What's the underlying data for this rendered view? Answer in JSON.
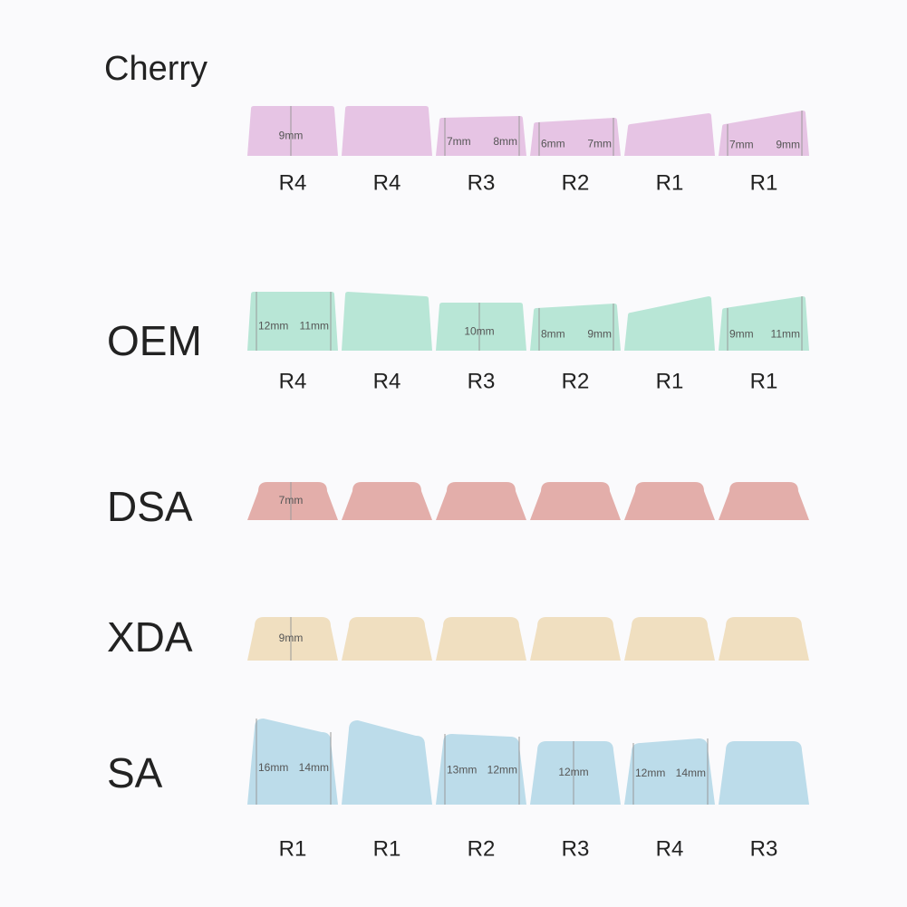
{
  "profiles": [
    {
      "name": "Cherry",
      "keys": [
        {
          "row": "R4",
          "height": "9mm"
        },
        {
          "row": "R4"
        },
        {
          "row": "R3",
          "left": "7mm",
          "right": "8mm"
        },
        {
          "row": "R2",
          "left": "6mm",
          "right": "7mm"
        },
        {
          "row": "R1"
        },
        {
          "row": "R1",
          "left": "7mm",
          "right": "9mm"
        }
      ]
    },
    {
      "name": "OEM",
      "keys": [
        {
          "row": "R4",
          "left": "12mm",
          "right": "11mm"
        },
        {
          "row": "R4"
        },
        {
          "row": "R3",
          "height": "10mm"
        },
        {
          "row": "R2",
          "left": "8mm",
          "right": "9mm"
        },
        {
          "row": "R1"
        },
        {
          "row": "R1",
          "left": "9mm",
          "right": "11mm"
        }
      ]
    },
    {
      "name": "DSA",
      "keys": [
        {
          "height": "7mm"
        },
        {},
        {},
        {},
        {},
        {}
      ]
    },
    {
      "name": "XDA",
      "keys": [
        {
          "height": "9mm"
        },
        {},
        {},
        {},
        {},
        {}
      ]
    },
    {
      "name": "SA",
      "keys": [
        {
          "row": "R1",
          "left": "16mm",
          "right": "14mm"
        },
        {
          "row": "R1"
        },
        {
          "row": "R2",
          "left": "13mm",
          "right": "12mm"
        },
        {
          "row": "R3",
          "height": "12mm"
        },
        {
          "row": "R4",
          "left": "12mm",
          "right": "14mm"
        },
        {
          "row": "R3"
        }
      ]
    }
  ]
}
